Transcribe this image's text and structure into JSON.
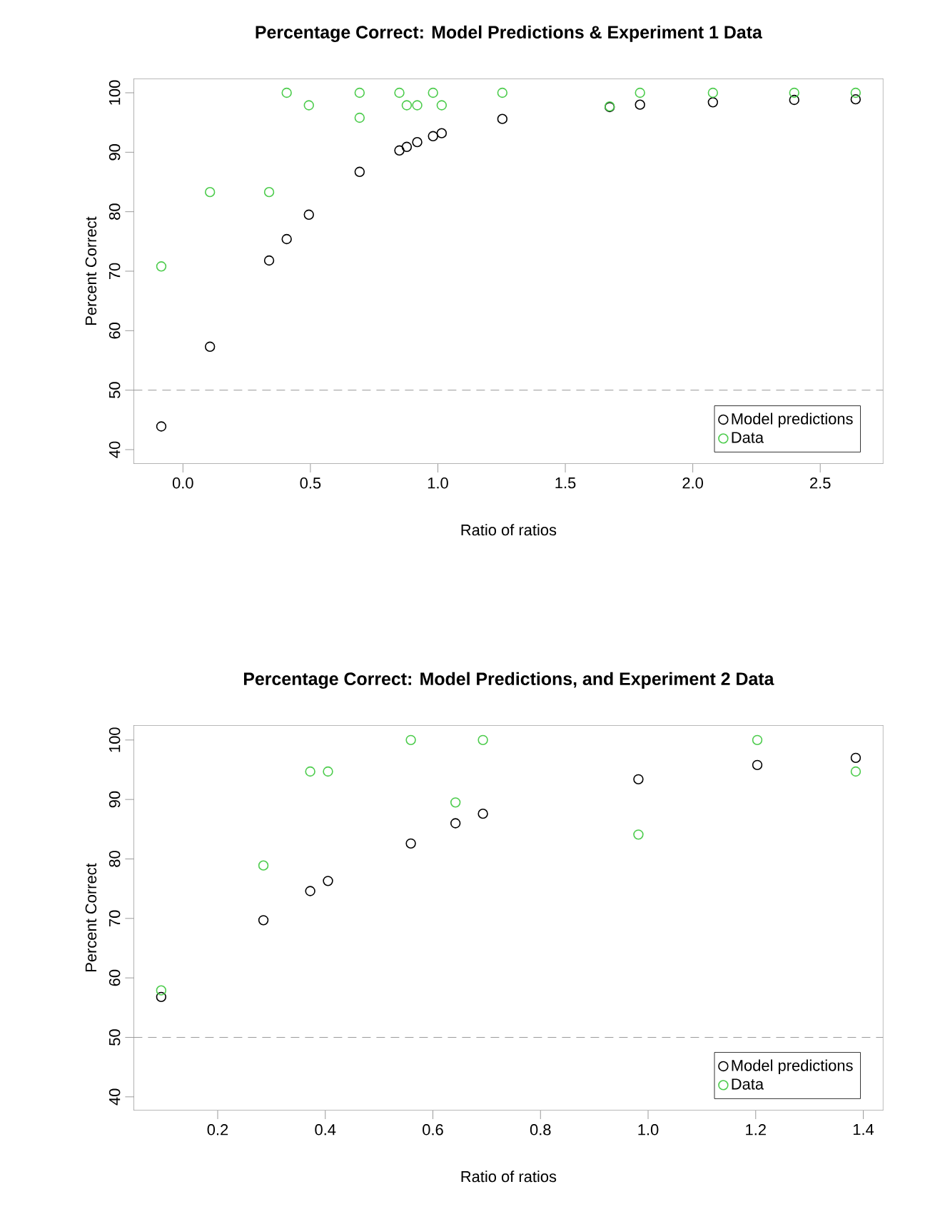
{
  "chart_data": [
    {
      "type": "scatter",
      "title": "Percentage Correct: Model Predictions & Experiment 1 Data",
      "xlabel": "Ratio of ratios",
      "ylabel": "Percent Correct",
      "xlim": [
        -0.193,
        2.747
      ],
      "ylim": [
        37.6,
        102.4
      ],
      "xticks": [
        {
          "value": 0,
          "label": "0.0"
        },
        0.5,
        {
          "value": 1,
          "label": "1.0"
        },
        1.5,
        {
          "value": 2,
          "label": "2.0"
        },
        2.5
      ],
      "yticks": [
        40,
        50,
        60,
        70,
        80,
        90,
        100
      ],
      "grid": false,
      "legend": "bottom right",
      "marker": "circle",
      "ref_lines": [
        {
          "axis": "y",
          "value": 50,
          "color": "#808080",
          "line_style": "dashed"
        }
      ],
      "series": [
        {
          "name": "Model predictions",
          "color": "#000000",
          "x": [
            -0.085,
            0.106,
            0.338,
            0.407,
            0.494,
            0.693,
            0.849,
            0.878,
            0.919,
            0.981,
            1.015,
            1.253,
            1.674,
            1.793,
            2.079,
            2.398,
            2.639
          ],
          "values": [
            43.9,
            57.3,
            71.8,
            75.4,
            79.5,
            86.7,
            90.3,
            90.9,
            91.7,
            92.7,
            93.2,
            95.6,
            97.6,
            98.0,
            98.4,
            98.8,
            98.9
          ]
        },
        {
          "name": "Data",
          "color": "#4dcc4d",
          "x": [
            -0.085,
            0.106,
            0.338,
            0.407,
            0.494,
            0.693,
            0.693,
            0.849,
            0.878,
            0.919,
            0.981,
            1.015,
            1.253,
            1.674,
            1.793,
            2.079,
            2.398,
            2.639
          ],
          "values": [
            70.8,
            83.3,
            83.3,
            100,
            97.9,
            100,
            95.8,
            100,
            97.9,
            97.9,
            100,
            97.9,
            100,
            97.7,
            100,
            100,
            100,
            100
          ]
        }
      ]
    },
    {
      "type": "scatter",
      "title": "Percentage Correct: Model Predictions, and Experiment 2 Data",
      "xlabel": "Ratio of ratios",
      "ylabel": "Percent Correct",
      "xlim": [
        0.044,
        1.437
      ],
      "ylim": [
        37.7,
        102.5
      ],
      "xticks": [
        0.2,
        0.4,
        0.6,
        0.8,
        {
          "value": 1,
          "label": "1.0"
        },
        1.2,
        1.4
      ],
      "yticks": [
        40,
        50,
        60,
        70,
        80,
        90,
        100
      ],
      "grid": false,
      "legend": "bottom right",
      "marker": "circle",
      "ref_lines": [
        {
          "axis": "y",
          "value": 50,
          "color": "#808080",
          "line_style": "dashed"
        }
      ],
      "series": [
        {
          "name": "Model predictions",
          "color": "#000000",
          "x": [
            0.095,
            0.285,
            0.372,
            0.405,
            0.559,
            0.642,
            0.693,
            0.982,
            1.203,
            1.386
          ],
          "values": [
            56.8,
            69.7,
            74.6,
            76.3,
            82.6,
            86.0,
            87.6,
            93.4,
            95.8,
            97.0
          ]
        },
        {
          "name": "Data",
          "color": "#4dcc4d",
          "x": [
            0.095,
            0.285,
            0.372,
            0.405,
            0.559,
            0.642,
            0.693,
            0.982,
            1.203,
            1.386
          ],
          "values": [
            57.9,
            78.9,
            94.7,
            94.7,
            100,
            89.5,
            100,
            84.1,
            100,
            94.7
          ]
        }
      ]
    }
  ]
}
